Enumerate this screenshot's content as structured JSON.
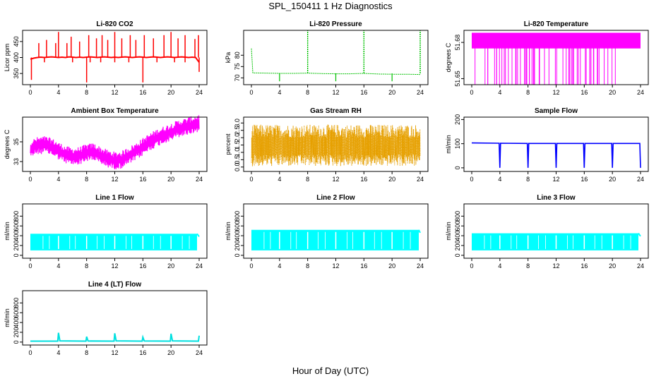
{
  "figure": {
    "title": "SPL_150411  1 Hz Diagnostics",
    "xlabel": "Hour of Day (UTC)"
  },
  "chart_data": [
    {
      "type": "line",
      "title": "Li-820 CO2",
      "ylabel": "Licor ppm",
      "color": "#ff0000",
      "xlim": [
        0,
        24
      ],
      "ylim": [
        315,
        485
      ],
      "yticks": [
        350,
        400,
        450
      ],
      "xticks": [
        0,
        4,
        8,
        12,
        16,
        20,
        24
      ],
      "series": [
        {
          "x": [
            0,
            0.5,
            1,
            1.5,
            2,
            2.5,
            3,
            3.5,
            4,
            4.5,
            5,
            5.5,
            6,
            6.5,
            7,
            7.5,
            8,
            8.5,
            9,
            9.5,
            10,
            10.5,
            11,
            11.5,
            12,
            12.5,
            13,
            13.5,
            14,
            14.5,
            15,
            15.5,
            16,
            16.5,
            17,
            17.5,
            18,
            18.5,
            19,
            19.5,
            20,
            20.5,
            21,
            21.5,
            22,
            22.5,
            23,
            23.5,
            24
          ],
          "y": [
            395,
            398,
            400,
            401,
            400,
            401,
            402,
            401,
            400,
            401,
            400,
            402,
            401,
            400,
            401,
            400,
            401,
            402,
            401,
            400,
            401,
            402,
            401,
            400,
            401,
            400,
            401,
            402,
            401,
            400,
            401,
            402,
            401,
            400,
            401,
            402,
            401,
            400,
            401,
            402,
            401,
            400,
            401,
            402,
            401,
            400,
            401,
            400,
            385
          ]
        }
      ]
    },
    {
      "type": "line",
      "title": "Li-820 Pressure",
      "ylabel": "kPa",
      "color": "#00c000",
      "xlim": [
        0,
        24
      ],
      "ylim": [
        67,
        91
      ],
      "yticks": [
        70,
        75,
        80
      ],
      "xticks": [
        0,
        4,
        8,
        12,
        16,
        20,
        24
      ],
      "series": [
        {
          "x": [
            0,
            0.2,
            2,
            4,
            6,
            8,
            10,
            12,
            14,
            16,
            18,
            20,
            22,
            24
          ],
          "y": [
            83,
            72.2,
            72.1,
            72.0,
            72.0,
            72.1,
            71.9,
            71.8,
            71.8,
            72.0,
            71.7,
            71.6,
            71.6,
            71.5
          ]
        }
      ]
    },
    {
      "type": "line",
      "title": "Li-820 Temperature",
      "ylabel": "degrees C",
      "color": "#ff00ff",
      "xlim": [
        0,
        24
      ],
      "ylim": [
        51.645,
        51.69
      ],
      "yticks": [
        51.65,
        51.68
      ],
      "xticks": [
        0,
        4,
        8,
        12,
        16,
        20,
        24
      ],
      "series": [
        {
          "x": [
            0,
            24
          ],
          "y": [
            51.68,
            51.68
          ]
        }
      ]
    },
    {
      "type": "line",
      "title": "Ambient Box Temperature",
      "ylabel": "degrees C",
      "color": "#ff00ff",
      "xlim": [
        0,
        24
      ],
      "ylim": [
        32,
        37.5
      ],
      "yticks": [
        33,
        35
      ],
      "xticks": [
        0,
        4,
        8,
        12,
        16,
        20,
        24
      ],
      "series": [
        {
          "x": [
            0,
            1,
            2,
            3,
            4,
            5,
            6,
            7,
            8,
            9,
            10,
            11,
            12,
            13,
            14,
            15,
            16,
            17,
            18,
            19,
            20,
            21,
            22,
            23,
            24
          ],
          "y": [
            34.3,
            34.6,
            34.7,
            34.5,
            34.1,
            33.7,
            33.5,
            33.6,
            33.9,
            34.0,
            33.6,
            33.3,
            33.1,
            33.2,
            33.6,
            34.0,
            34.5,
            35.0,
            35.4,
            35.7,
            36.0,
            36.3,
            36.5,
            36.7,
            36.9
          ]
        }
      ]
    },
    {
      "type": "line",
      "title": "Gas Stream RH",
      "ylabel": "percent",
      "color": "#e6a000",
      "xlim": [
        0,
        24
      ],
      "ylim": [
        -0.3,
        3.4
      ],
      "yticks": [
        0.0,
        0.5,
        1.0,
        1.5,
        2.0,
        2.5,
        3.0
      ],
      "xticks": [
        0,
        4,
        8,
        12,
        16,
        20,
        24
      ],
      "series": [
        {
          "x": [
            0,
            24
          ],
          "y": [
            1.4,
            1.4
          ]
        }
      ]
    },
    {
      "type": "line",
      "title": "Sample Flow",
      "ylabel": "ml/min",
      "color": "#0000ff",
      "xlim": [
        0,
        24
      ],
      "ylim": [
        -15,
        210
      ],
      "yticks": [
        0,
        100,
        200
      ],
      "xticks": [
        0,
        4,
        8,
        12,
        16,
        20,
        24
      ],
      "series": [
        {
          "x": [
            0,
            3.9,
            4,
            4.1,
            7.9,
            8,
            8.1,
            11.9,
            12,
            12.1,
            15.9,
            16,
            16.1,
            19.9,
            20,
            20.1,
            23.9,
            24
          ],
          "y": [
            103,
            102,
            0,
            102,
            101,
            0,
            101,
            101,
            0,
            101,
            101,
            0,
            101,
            101,
            0,
            101,
            101,
            0
          ]
        }
      ]
    },
    {
      "type": "line",
      "title": "Line 1 Flow",
      "ylabel": "ml/min",
      "color": "#00ffff",
      "xlim": [
        0,
        24
      ],
      "ylim": [
        -60,
        1050
      ],
      "yticks": [
        0,
        200,
        400,
        600,
        800
      ],
      "xticks": [
        0,
        4,
        8,
        12,
        16,
        20,
        24
      ],
      "series": [
        {
          "x": [
            0,
            24
          ],
          "y": [
            440,
            440
          ]
        }
      ]
    },
    {
      "type": "line",
      "title": "Line 2 Flow",
      "ylabel": "ml/min",
      "color": "#00ffff",
      "xlim": [
        0,
        24
      ],
      "ylim": [
        -60,
        1050
      ],
      "yticks": [
        0,
        200,
        400,
        600,
        800
      ],
      "xticks": [
        0,
        4,
        8,
        12,
        16,
        20,
        24
      ],
      "series": [
        {
          "x": [
            0,
            24
          ],
          "y": [
            520,
            520
          ]
        }
      ]
    },
    {
      "type": "line",
      "title": "Line 3 Flow",
      "ylabel": "ml/min",
      "color": "#00ffff",
      "xlim": [
        0,
        24
      ],
      "ylim": [
        -60,
        1050
      ],
      "yticks": [
        0,
        200,
        400,
        600,
        800
      ],
      "xticks": [
        0,
        4,
        8,
        12,
        16,
        20,
        24
      ],
      "series": [
        {
          "x": [
            0,
            24
          ],
          "y": [
            450,
            450
          ]
        }
      ]
    },
    {
      "type": "line",
      "title": "Line 4 (LT) Flow",
      "ylabel": "ml/min",
      "color": "#00e0e0",
      "xlim": [
        0,
        24
      ],
      "ylim": [
        -60,
        1050
      ],
      "yticks": [
        0,
        200,
        400,
        600,
        800
      ],
      "xticks": [
        0,
        4,
        8,
        12,
        16,
        20,
        24
      ],
      "series": [
        {
          "x": [
            0,
            3.9,
            4,
            4.2,
            7.9,
            8,
            8.2,
            11.9,
            12,
            12.2,
            15.9,
            16,
            16.2,
            19.9,
            20,
            20.2,
            23.9,
            24
          ],
          "y": [
            20,
            20,
            190,
            25,
            20,
            110,
            22,
            20,
            180,
            25,
            20,
            100,
            22,
            20,
            170,
            25,
            20,
            130
          ]
        }
      ]
    }
  ]
}
